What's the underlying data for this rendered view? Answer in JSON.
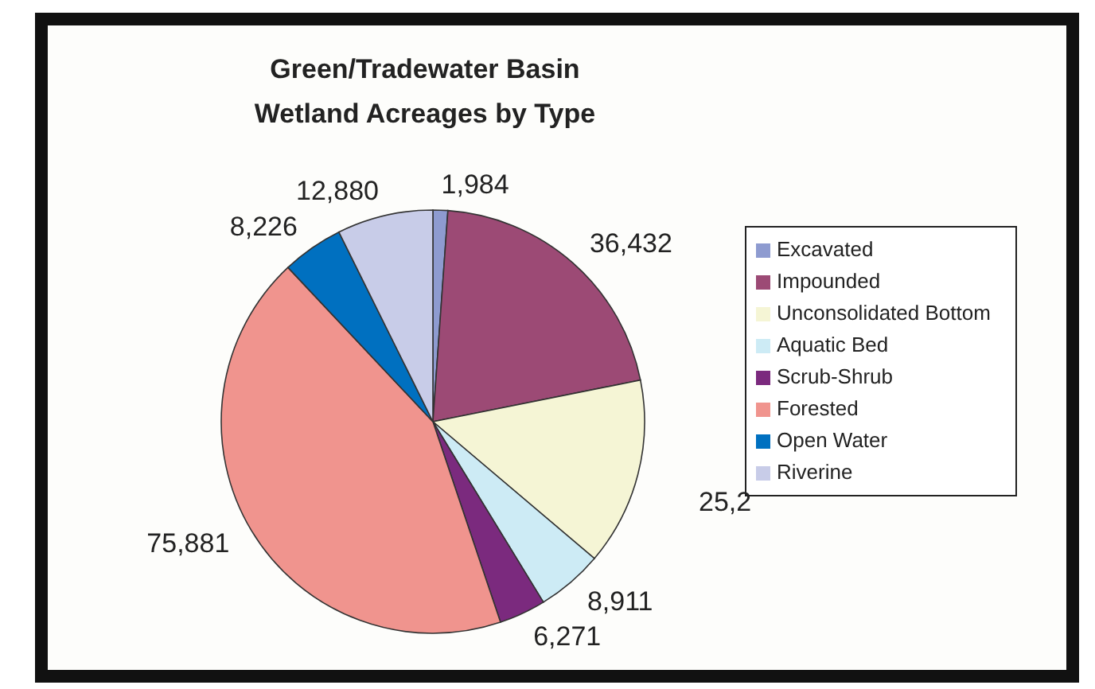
{
  "chart_data": {
    "type": "pie",
    "title": "Green/Tradewater Basin\nWetland Acreages by Type",
    "categories": [
      "Excavated",
      "Impounded",
      "Unconsolidated Bottom",
      "Aquatic Bed",
      "Scrub-Shrub",
      "Forested",
      "Open Water",
      "Riverine"
    ],
    "values": [
      1984,
      36432,
      25200,
      8911,
      6271,
      75881,
      8226,
      12880
    ],
    "colors": [
      "#8e9bd0",
      "#9c4a75",
      "#f5f5d5",
      "#cdebf5",
      "#7b2a7e",
      "#f0948e",
      "#0070c0",
      "#c8cce8"
    ],
    "value_labels": [
      "1,984",
      "36,432",
      null,
      "8,911",
      "6,271",
      "75,881",
      "8,226",
      "12,880"
    ],
    "annotations": [
      "25,2"
    ],
    "legend": "right"
  }
}
